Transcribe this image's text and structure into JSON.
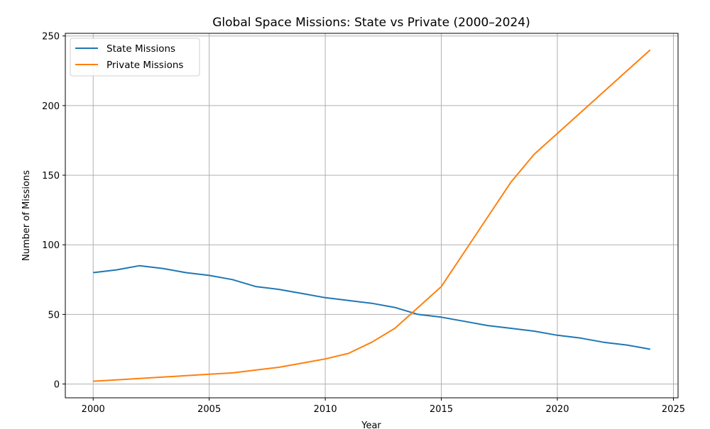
{
  "chart_data": {
    "type": "line",
    "title": "Global Space Missions: State vs Private (2000–2024)",
    "xlabel": "Year",
    "ylabel": "Number of Missions",
    "x": [
      2000,
      2001,
      2002,
      2003,
      2004,
      2005,
      2006,
      2007,
      2008,
      2009,
      2010,
      2011,
      2012,
      2013,
      2014,
      2015,
      2016,
      2017,
      2018,
      2019,
      2020,
      2021,
      2022,
      2023,
      2024
    ],
    "series": [
      {
        "name": "State Missions",
        "color": "#1f77b4",
        "values": [
          80,
          82,
          85,
          83,
          80,
          78,
          75,
          70,
          68,
          65,
          62,
          60,
          58,
          55,
          50,
          48,
          45,
          42,
          40,
          38,
          35,
          33,
          30,
          28,
          25
        ]
      },
      {
        "name": "Private Missions",
        "color": "#ff7f0e",
        "values": [
          2,
          3,
          4,
          5,
          6,
          7,
          8,
          10,
          12,
          15,
          18,
          22,
          30,
          40,
          55,
          70,
          95,
          120,
          145,
          165,
          180,
          195,
          210,
          225,
          240
        ]
      }
    ],
    "xlim": [
      1998.8,
      2025.2
    ],
    "ylim": [
      -9.9,
      251.9
    ],
    "xticks": [
      2000,
      2005,
      2010,
      2015,
      2020,
      2025
    ],
    "xtick_labels": [
      "2000",
      "2005",
      "2010",
      "2015",
      "2020",
      "2025"
    ],
    "yticks": [
      0,
      50,
      100,
      150,
      200,
      250
    ],
    "ytick_labels": [
      "0",
      "50",
      "100",
      "150",
      "200",
      "250"
    ],
    "grid": true,
    "legend_position": "top-left"
  }
}
